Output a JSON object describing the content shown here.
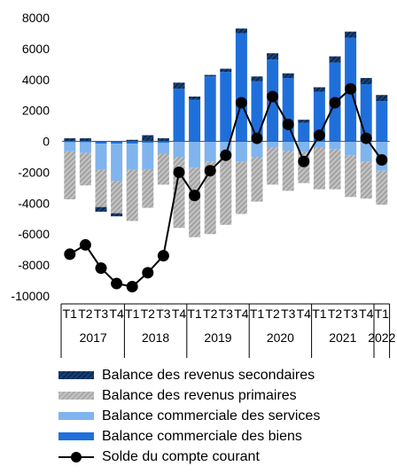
{
  "chart_data": {
    "type": "bar",
    "stacked": true,
    "x_quarters": [
      "T1",
      "T2",
      "T3",
      "T4",
      "T1",
      "T2",
      "T3",
      "T4",
      "T1",
      "T2",
      "T3",
      "T4",
      "T1",
      "T2",
      "T3",
      "T4",
      "T1",
      "T2",
      "T3",
      "T4",
      "T1"
    ],
    "years": [
      {
        "label": "2017",
        "start": 0,
        "end": 3
      },
      {
        "label": "2018",
        "start": 4,
        "end": 7
      },
      {
        "label": "2019",
        "start": 8,
        "end": 11
      },
      {
        "label": "2020",
        "start": 12,
        "end": 15
      },
      {
        "label": "2021",
        "start": 16,
        "end": 19
      },
      {
        "label": "2022",
        "start": 20,
        "end": 20
      }
    ],
    "ylim": [
      -10000,
      8000
    ],
    "yticks": [
      -10000,
      -8000,
      -6000,
      -4000,
      -2000,
      0,
      2000,
      4000,
      6000,
      8000
    ],
    "series": [
      {
        "name": "Balance commerciale des biens",
        "color": "#1f6fdb",
        "style": "solid",
        "values": [
          -50,
          -50,
          -150,
          -150,
          -150,
          -100,
          -100,
          3400,
          2700,
          4200,
          4500,
          7000,
          3900,
          5300,
          4100,
          1200,
          3200,
          5100,
          6700,
          3700,
          2600
        ]
      },
      {
        "name": "Balance commerciale des services",
        "color": "#80b4ee",
        "style": "solid",
        "values": [
          -600,
          -700,
          -1700,
          -2400,
          -1700,
          -1700,
          -700,
          -1000,
          -1700,
          -1300,
          -1000,
          -1300,
          -1000,
          -400,
          -600,
          -700,
          -400,
          -500,
          -900,
          -1300,
          -1900
        ]
      },
      {
        "name": "Balance des revenus primaires",
        "color": "#aaaaaa",
        "style": "hatch",
        "values": [
          -3100,
          -2100,
          -2400,
          -2100,
          -3300,
          -2500,
          -2000,
          -4600,
          -4500,
          -4700,
          -4400,
          -3400,
          -2900,
          -2400,
          -2600,
          -2000,
          -2700,
          -2600,
          -2700,
          -2400,
          -2200
        ]
      },
      {
        "name": "Balance des revenus secondaires",
        "color": "#0f2f5e",
        "style": "hatch-dark",
        "pos": [
          200,
          200,
          0,
          0,
          100,
          400,
          200,
          400,
          200,
          100,
          200,
          300,
          300,
          400,
          300,
          200,
          300,
          400,
          400,
          400,
          400
        ],
        "neg": [
          0,
          0,
          -300,
          -200,
          0,
          0,
          0,
          0,
          0,
          0,
          0,
          0,
          0,
          0,
          0,
          0,
          0,
          0,
          0,
          0,
          0
        ]
      },
      {
        "name": "Solde du compte courant",
        "color": "#000000",
        "style": "line",
        "values": [
          -7300,
          -6700,
          -8200,
          -9200,
          -9400,
          -8500,
          -7400,
          -2000,
          -3500,
          -1900,
          -900,
          2500,
          200,
          2900,
          1100,
          -1300,
          400,
          2500,
          3400,
          200,
          -1200
        ]
      }
    ]
  }
}
